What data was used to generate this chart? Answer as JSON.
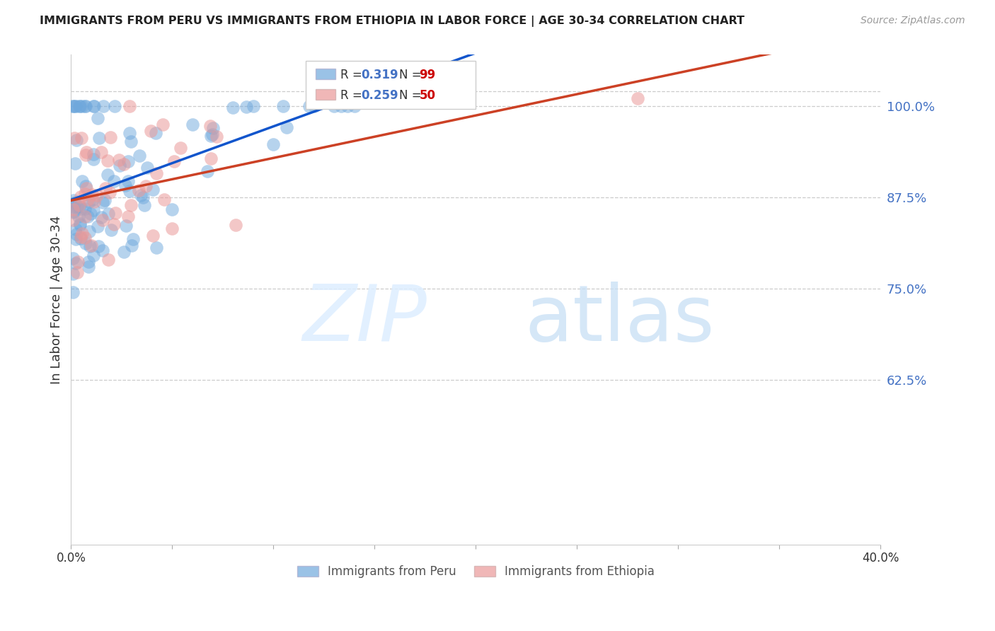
{
  "title": "IMMIGRANTS FROM PERU VS IMMIGRANTS FROM ETHIOPIA IN LABOR FORCE | AGE 30-34 CORRELATION CHART",
  "source": "Source: ZipAtlas.com",
  "ylabel": "In Labor Force | Age 30-34",
  "xlim": [
    0.0,
    0.4
  ],
  "ylim": [
    0.4,
    1.07
  ],
  "yticks": [
    0.625,
    0.75,
    0.875,
    1.0
  ],
  "ytick_labels": [
    "62.5%",
    "75.0%",
    "87.5%",
    "100.0%"
  ],
  "xticks": [
    0.0,
    0.05,
    0.1,
    0.15,
    0.2,
    0.25,
    0.3,
    0.35,
    0.4
  ],
  "xtick_labels": [
    "0.0%",
    "",
    "",
    "",
    "",
    "",
    "",
    "",
    "40.0%"
  ],
  "peru_R": 0.319,
  "peru_N": 99,
  "ethiopia_R": 0.259,
  "ethiopia_N": 50,
  "peru_color": "#6fa8dc",
  "ethiopia_color": "#ea9999",
  "peru_line_color": "#1155cc",
  "ethiopia_line_color": "#cc4125",
  "background_color": "#ffffff"
}
